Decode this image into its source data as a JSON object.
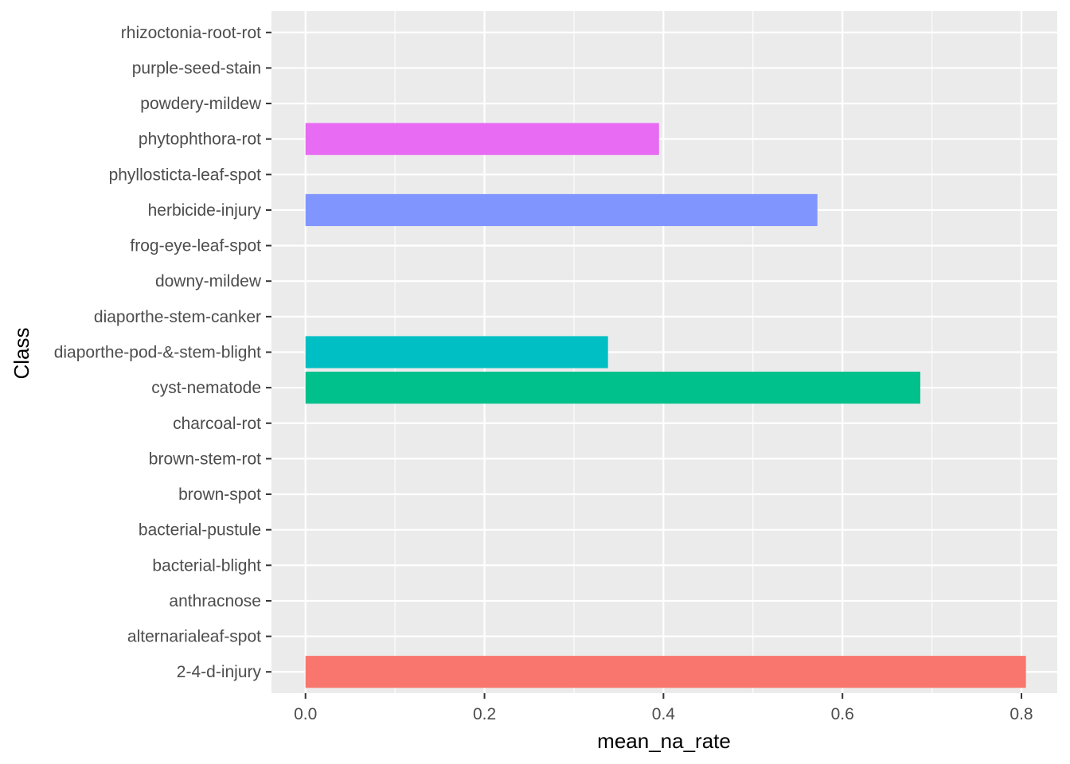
{
  "chart_data": {
    "type": "bar",
    "orientation": "horizontal",
    "xlabel": "mean_na_rate",
    "ylabel": "Class",
    "xlim": [
      -0.038,
      0.84
    ],
    "x_ticks": [
      0.0,
      0.2,
      0.4,
      0.6,
      0.8
    ],
    "x_tick_labels": [
      "0.0",
      "0.2",
      "0.4",
      "0.6",
      "0.8"
    ],
    "grid": true,
    "legend": "none",
    "categories": [
      "2-4-d-injury",
      "alternarialeaf-spot",
      "anthracnose",
      "bacterial-blight",
      "bacterial-pustule",
      "brown-spot",
      "brown-stem-rot",
      "charcoal-rot",
      "cyst-nematode",
      "diaporthe-pod-&-stem-blight",
      "diaporthe-stem-canker",
      "downy-mildew",
      "frog-eye-leaf-spot",
      "herbicide-injury",
      "phyllosticta-leaf-spot",
      "phytophthora-rot",
      "powdery-mildew",
      "purple-seed-stain",
      "rhizoctonia-root-rot"
    ],
    "values": [
      0.805,
      0,
      0,
      0,
      0,
      0,
      0,
      0,
      0.687,
      0.338,
      0,
      0,
      0,
      0.572,
      0,
      0.395,
      0,
      0,
      0
    ],
    "colors": [
      "#F8766D",
      "#E58700",
      "#C99800",
      "#A3A500",
      "#6BB100",
      "#00BA38",
      "#00BF7D",
      "#00C0AF",
      "#00C08B",
      "#00BFC4",
      "#00B0F6",
      "#00A5FF",
      "#619CFF",
      "#8195FF",
      "#B983FF",
      "#E76BF3",
      "#FD61D1",
      "#FF67A4",
      "#FF6C90"
    ],
    "panel_background": "#EBEBEB",
    "grid_color": "#FFFFFF"
  }
}
